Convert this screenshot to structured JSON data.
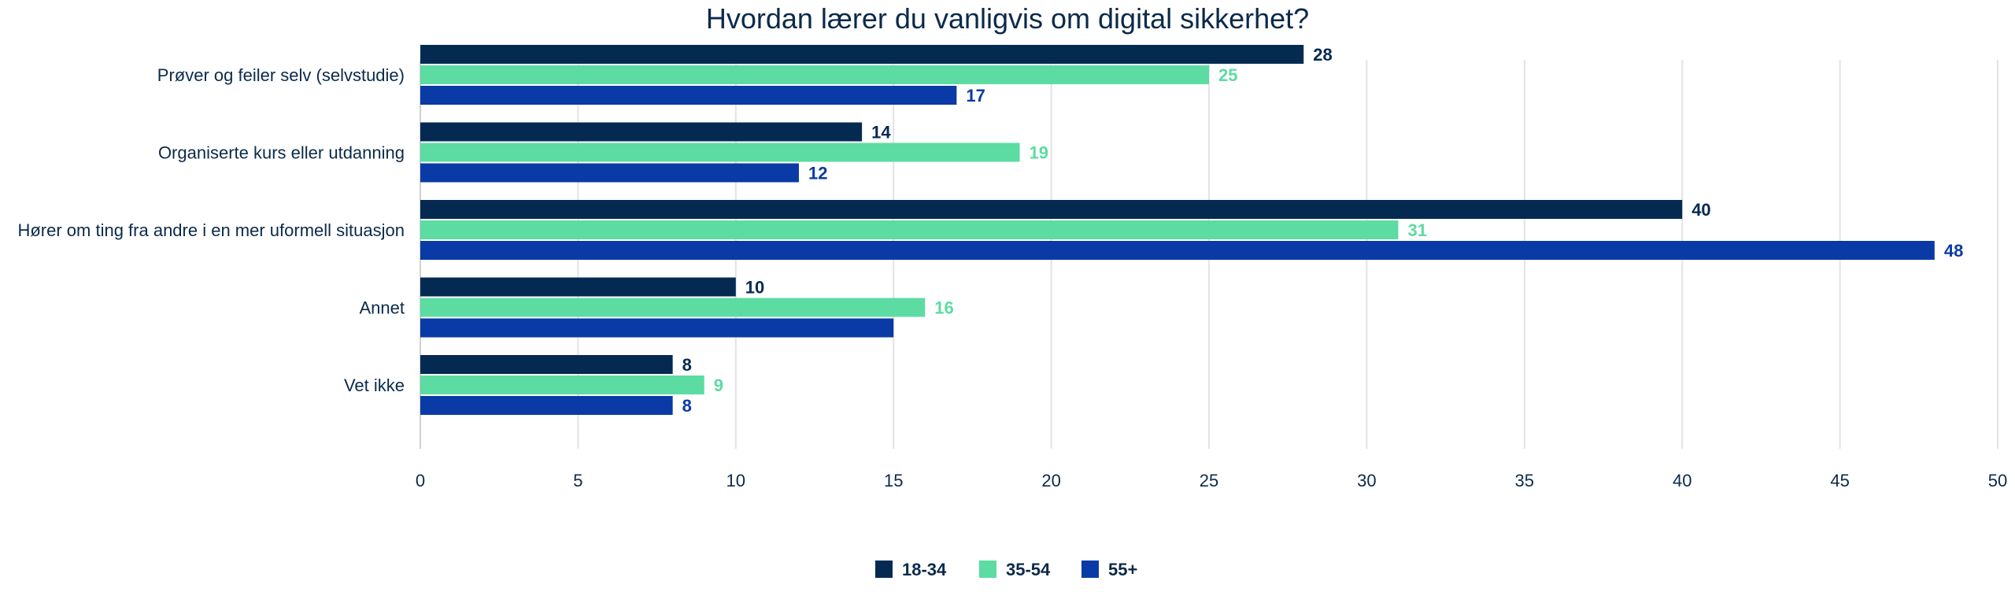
{
  "chart_data": {
    "type": "bar",
    "orientation": "horizontal",
    "title": "Hvordan lærer du vanligvis om digital sikkerhet?",
    "categories": [
      "Prøver og feiler selv (selvstudie)",
      "Organiserte kurs eller utdanning",
      "Hører om ting fra andre i en mer uformell situasjon",
      "Annet",
      "Vet ikke"
    ],
    "series": [
      {
        "name": "18-34",
        "color": "#052a52",
        "values": [
          28,
          14,
          40,
          10,
          8
        ],
        "labels": [
          "28",
          "14",
          "40",
          "10",
          "8"
        ]
      },
      {
        "name": "35-54",
        "color": "#5cdca2",
        "values": [
          25,
          19,
          31,
          16,
          9
        ],
        "labels": [
          "25",
          "19",
          "31",
          "16",
          "9"
        ]
      },
      {
        "name": "55+",
        "color": "#0a3aa6",
        "values": [
          17,
          12,
          48,
          15,
          8
        ],
        "labels": [
          "17",
          "12",
          "48",
          "",
          "8"
        ]
      }
    ],
    "xlim": [
      0,
      50
    ],
    "xticks": [
      "0",
      "5",
      "10",
      "15",
      "20",
      "25",
      "30",
      "35",
      "40",
      "45",
      "50"
    ],
    "grid": true,
    "legend": "bottom-center"
  }
}
